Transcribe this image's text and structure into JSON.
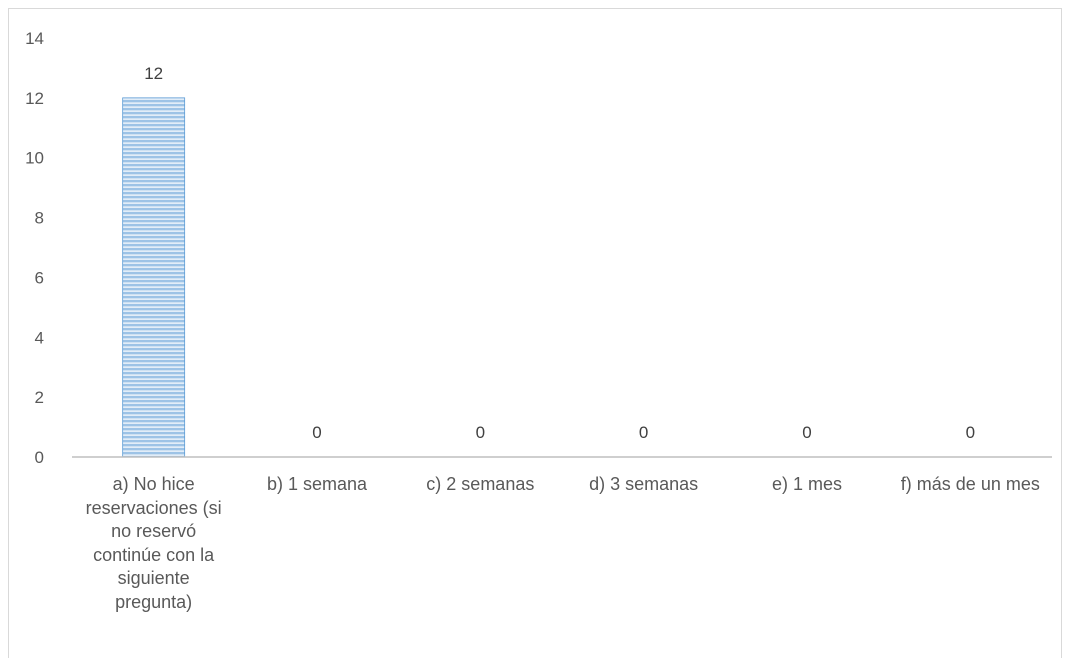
{
  "chart_data": {
    "type": "bar",
    "categories": [
      "a) No hice reservaciones (si no reservó continúe con la siguiente pregunta)",
      "b) 1 semana",
      "c) 2 semanas",
      "d) 3 semanas",
      "e) 1 mes",
      "f) más de un mes"
    ],
    "values": [
      12,
      0,
      0,
      0,
      0,
      0
    ],
    "title": "",
    "xlabel": "",
    "ylabel": "",
    "ylim": [
      0,
      14
    ],
    "yticks": [
      0,
      2,
      4,
      6,
      8,
      10,
      12,
      14
    ],
    "grid": false,
    "legend": "none",
    "colors": {
      "bar": "#9dc3e6",
      "bar_edge": "#5b9bd5",
      "stripe": "#ffffff",
      "axis": "#bfbfbf"
    }
  }
}
